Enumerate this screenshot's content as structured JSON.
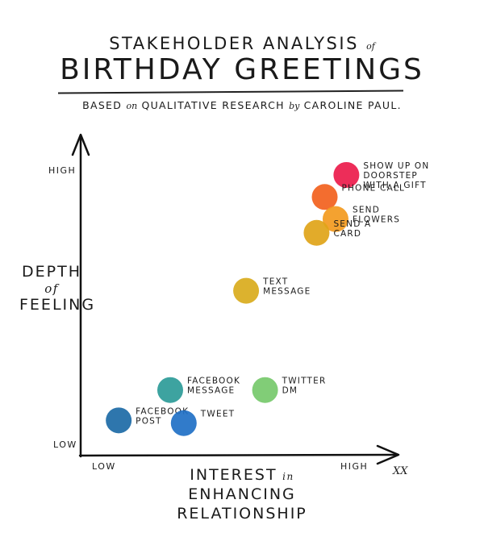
{
  "header": {
    "title_line1": "STAKEHOLDER ANALYSIS",
    "title_of": "of",
    "title_line2": "BIRTHDAY GREETINGS",
    "subtitle_pre": "BASED",
    "subtitle_on": "on",
    "subtitle_mid": "QUALITATIVE RESEARCH",
    "subtitle_by": "by",
    "subtitle_post": "CAROLINE PAUL."
  },
  "axes": {
    "y_label_line1": "DEPTH",
    "y_label_of": "of",
    "y_label_line2": "FEELING",
    "x_label_pre": "INTEREST",
    "x_label_in": "in",
    "x_label_post": "ENHANCING",
    "x_label_line2": "RELATIONSHIP",
    "y_high": "HIGH",
    "y_low": "LOW",
    "x_low": "LOW",
    "x_high": "HIGH",
    "signature": "XX"
  },
  "chart_data": {
    "type": "scatter",
    "title": "STAKEHOLDER ANALYSIS of BIRTHDAY GREETINGS",
    "subtitle": "BASED on QUALITATIVE RESEARCH by CAROLINE PAUL.",
    "xlabel": "INTEREST in ENHANCING RELATIONSHIP",
    "ylabel": "DEPTH of FEELING",
    "x_ticks": [
      "LOW",
      "HIGH"
    ],
    "y_ticks": [
      "LOW",
      "HIGH"
    ],
    "xlim": [
      0,
      10
    ],
    "ylim": [
      0,
      10
    ],
    "grid": false,
    "points": [
      {
        "label_lines": [
          "SHOW UP ON",
          "DOORSTEP",
          "WITH A GIFT"
        ],
        "x": 9.0,
        "y": 9.3,
        "color": "#ec1b4b"
      },
      {
        "label_lines": [
          "PHONE CALL"
        ],
        "x": 8.2,
        "y": 8.5,
        "color": "#f2611d"
      },
      {
        "label_lines": [
          "SEND",
          "FLOWERS"
        ],
        "x": 8.6,
        "y": 7.7,
        "color": "#f39a1e"
      },
      {
        "label_lines": [
          "SEND A",
          "CARD"
        ],
        "x": 7.9,
        "y": 7.2,
        "color": "#e0a418"
      },
      {
        "label_lines": [
          "TEXT",
          "MESSAGE"
        ],
        "x": 5.3,
        "y": 5.1,
        "color": "#d9ab1c"
      },
      {
        "label_lines": [
          "FACEBOOK",
          "MESSAGE"
        ],
        "x": 2.5,
        "y": 1.5,
        "color": "#2d9b98"
      },
      {
        "label_lines": [
          "TWITTER",
          "DM"
        ],
        "x": 6.0,
        "y": 1.5,
        "color": "#76c96b"
      },
      {
        "label_lines": [
          "FACEBOOK",
          "POST"
        ],
        "x": 0.6,
        "y": 0.4,
        "color": "#1c6aa6"
      },
      {
        "label_lines": [
          "TWEET"
        ],
        "x": 3.0,
        "y": 0.3,
        "color": "#1f70c6"
      }
    ]
  }
}
